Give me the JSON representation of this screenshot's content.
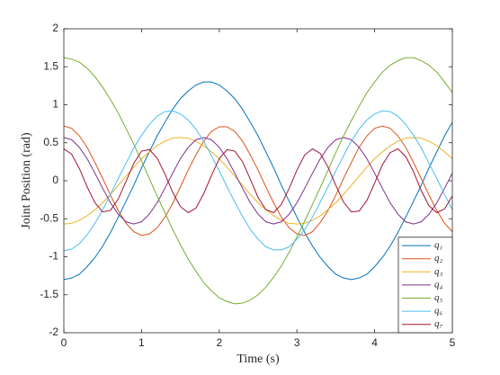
{
  "chart_data": {
    "type": "line",
    "xlabel": "Time (s)",
    "ylabel": "Joint Position (rad)",
    "xlim": [
      0,
      5
    ],
    "ylim": [
      -2,
      2
    ],
    "xticks": [
      0,
      1,
      2,
      3,
      4,
      5
    ],
    "yticks": [
      -2,
      -1.5,
      -1,
      -0.5,
      0,
      0.5,
      1,
      1.5,
      2
    ],
    "legend_position": "lower right",
    "x": [
      0,
      0.1,
      0.2,
      0.3,
      0.4,
      0.5,
      0.6,
      0.7,
      0.8,
      0.9,
      1.0,
      1.1,
      1.2,
      1.3,
      1.4,
      1.5,
      1.6,
      1.7,
      1.8,
      1.9,
      2.0,
      2.1,
      2.2,
      2.3,
      2.4,
      2.5,
      2.6,
      2.7,
      2.8,
      2.9,
      3.0,
      3.1,
      3.2,
      3.3,
      3.4,
      3.5,
      3.6,
      3.7,
      3.8,
      3.9,
      4.0,
      4.1,
      4.2,
      4.3,
      4.4,
      4.5,
      4.6,
      4.7,
      4.8,
      4.9,
      5.0
    ],
    "series": [
      {
        "name": "q₁",
        "color": "#0072bd",
        "values": [
          -1.3,
          -1.28,
          -1.23,
          -1.13,
          -1.01,
          -0.86,
          -0.68,
          -0.48,
          -0.27,
          -0.06,
          0.17,
          0.38,
          0.59,
          0.77,
          0.94,
          1.08,
          1.18,
          1.26,
          1.3,
          1.3,
          1.26,
          1.18,
          1.08,
          0.94,
          0.77,
          0.59,
          0.38,
          0.17,
          -0.06,
          -0.27,
          -0.48,
          -0.68,
          -0.86,
          -1.01,
          -1.13,
          -1.23,
          -1.28,
          -1.3,
          -1.28,
          -1.23,
          -1.13,
          -1.01,
          -0.86,
          -0.68,
          -0.48,
          -0.27,
          -0.06,
          0.17,
          0.38,
          0.59,
          0.77
        ]
      },
      {
        "name": "q₂",
        "color": "#d95319",
        "values": [
          0.72,
          0.69,
          0.59,
          0.44,
          0.24,
          0.03,
          -0.19,
          -0.39,
          -0.56,
          -0.67,
          -0.72,
          -0.7,
          -0.62,
          -0.48,
          -0.3,
          -0.08,
          0.14,
          0.34,
          0.52,
          0.65,
          0.71,
          0.71,
          0.65,
          0.52,
          0.34,
          0.14,
          -0.08,
          -0.29,
          -0.48,
          -0.62,
          -0.7,
          -0.72,
          -0.67,
          -0.55,
          -0.39,
          -0.19,
          0.03,
          0.24,
          0.44,
          0.59,
          0.69,
          0.72,
          0.69,
          0.59,
          0.44,
          0.24,
          0.03,
          -0.19,
          -0.39,
          -0.56,
          -0.67
        ]
      },
      {
        "name": "q₃",
        "color": "#edb120",
        "values": [
          -0.57,
          -0.56,
          -0.52,
          -0.46,
          -0.38,
          -0.29,
          -0.18,
          -0.06,
          0.06,
          0.18,
          0.29,
          0.38,
          0.46,
          0.52,
          0.56,
          0.57,
          0.56,
          0.52,
          0.46,
          0.38,
          0.29,
          0.18,
          0.06,
          -0.06,
          -0.18,
          -0.29,
          -0.38,
          -0.46,
          -0.52,
          -0.56,
          -0.57,
          -0.56,
          -0.52,
          -0.46,
          -0.38,
          -0.29,
          -0.18,
          -0.06,
          0.06,
          0.18,
          0.29,
          0.38,
          0.46,
          0.52,
          0.56,
          0.57,
          0.56,
          0.52,
          0.46,
          0.38,
          0.29
        ]
      },
      {
        "name": "q₄",
        "color": "#7e2f8e",
        "values": [
          0.57,
          0.54,
          0.44,
          0.29,
          0.1,
          -0.1,
          -0.29,
          -0.44,
          -0.54,
          -0.57,
          -0.54,
          -0.44,
          -0.29,
          -0.1,
          0.1,
          0.29,
          0.44,
          0.54,
          0.57,
          0.54,
          0.44,
          0.29,
          0.1,
          -0.1,
          -0.29,
          -0.44,
          -0.54,
          -0.57,
          -0.54,
          -0.44,
          -0.29,
          -0.1,
          0.1,
          0.29,
          0.44,
          0.54,
          0.57,
          0.54,
          0.44,
          0.29,
          0.1,
          -0.1,
          -0.29,
          -0.44,
          -0.54,
          -0.57,
          -0.54,
          -0.44,
          -0.29,
          -0.1,
          0.1
        ]
      },
      {
        "name": "q₅",
        "color": "#77ac30",
        "values": [
          1.62,
          1.6,
          1.56,
          1.48,
          1.37,
          1.23,
          1.07,
          0.89,
          0.69,
          0.48,
          0.26,
          0.03,
          -0.2,
          -0.42,
          -0.64,
          -0.84,
          -1.03,
          -1.19,
          -1.34,
          -1.45,
          -1.54,
          -1.59,
          -1.62,
          -1.61,
          -1.57,
          -1.5,
          -1.4,
          -1.27,
          -1.12,
          -0.94,
          -0.74,
          -0.53,
          -0.31,
          -0.09,
          0.14,
          0.37,
          0.59,
          0.79,
          0.98,
          1.16,
          1.3,
          1.43,
          1.52,
          1.58,
          1.62,
          1.62,
          1.58,
          1.52,
          1.43,
          1.3,
          1.16
        ]
      },
      {
        "name": "q₆",
        "color": "#4dbeee",
        "values": [
          -0.92,
          -0.9,
          -0.83,
          -0.71,
          -0.56,
          -0.38,
          -0.18,
          0.03,
          0.23,
          0.43,
          0.6,
          0.74,
          0.85,
          0.91,
          0.92,
          0.88,
          0.8,
          0.68,
          0.52,
          0.33,
          0.13,
          -0.08,
          -0.28,
          -0.47,
          -0.64,
          -0.77,
          -0.87,
          -0.91,
          -0.91,
          -0.87,
          -0.77,
          -0.64,
          -0.48,
          -0.28,
          -0.08,
          0.13,
          0.33,
          0.52,
          0.68,
          0.8,
          0.88,
          0.92,
          0.91,
          0.85,
          0.74,
          0.6,
          0.43,
          0.23,
          0.03,
          -0.18,
          -0.38
        ]
      },
      {
        "name": "q₇",
        "color": "#a2142f",
        "values": [
          0.42,
          0.35,
          0.16,
          -0.08,
          -0.29,
          -0.41,
          -0.39,
          -0.24,
          -0.01,
          0.23,
          0.39,
          0.41,
          0.3,
          0.09,
          -0.15,
          -0.34,
          -0.42,
          -0.36,
          -0.17,
          0.07,
          0.29,
          0.41,
          0.39,
          0.25,
          0.02,
          -0.22,
          -0.38,
          -0.42,
          -0.31,
          -0.1,
          0.14,
          0.34,
          0.42,
          0.36,
          0.18,
          -0.06,
          -0.28,
          -0.41,
          -0.4,
          -0.26,
          -0.03,
          0.21,
          0.37,
          0.42,
          0.32,
          0.12,
          -0.13,
          -0.33,
          -0.42,
          -0.37,
          -0.2
        ]
      }
    ]
  }
}
